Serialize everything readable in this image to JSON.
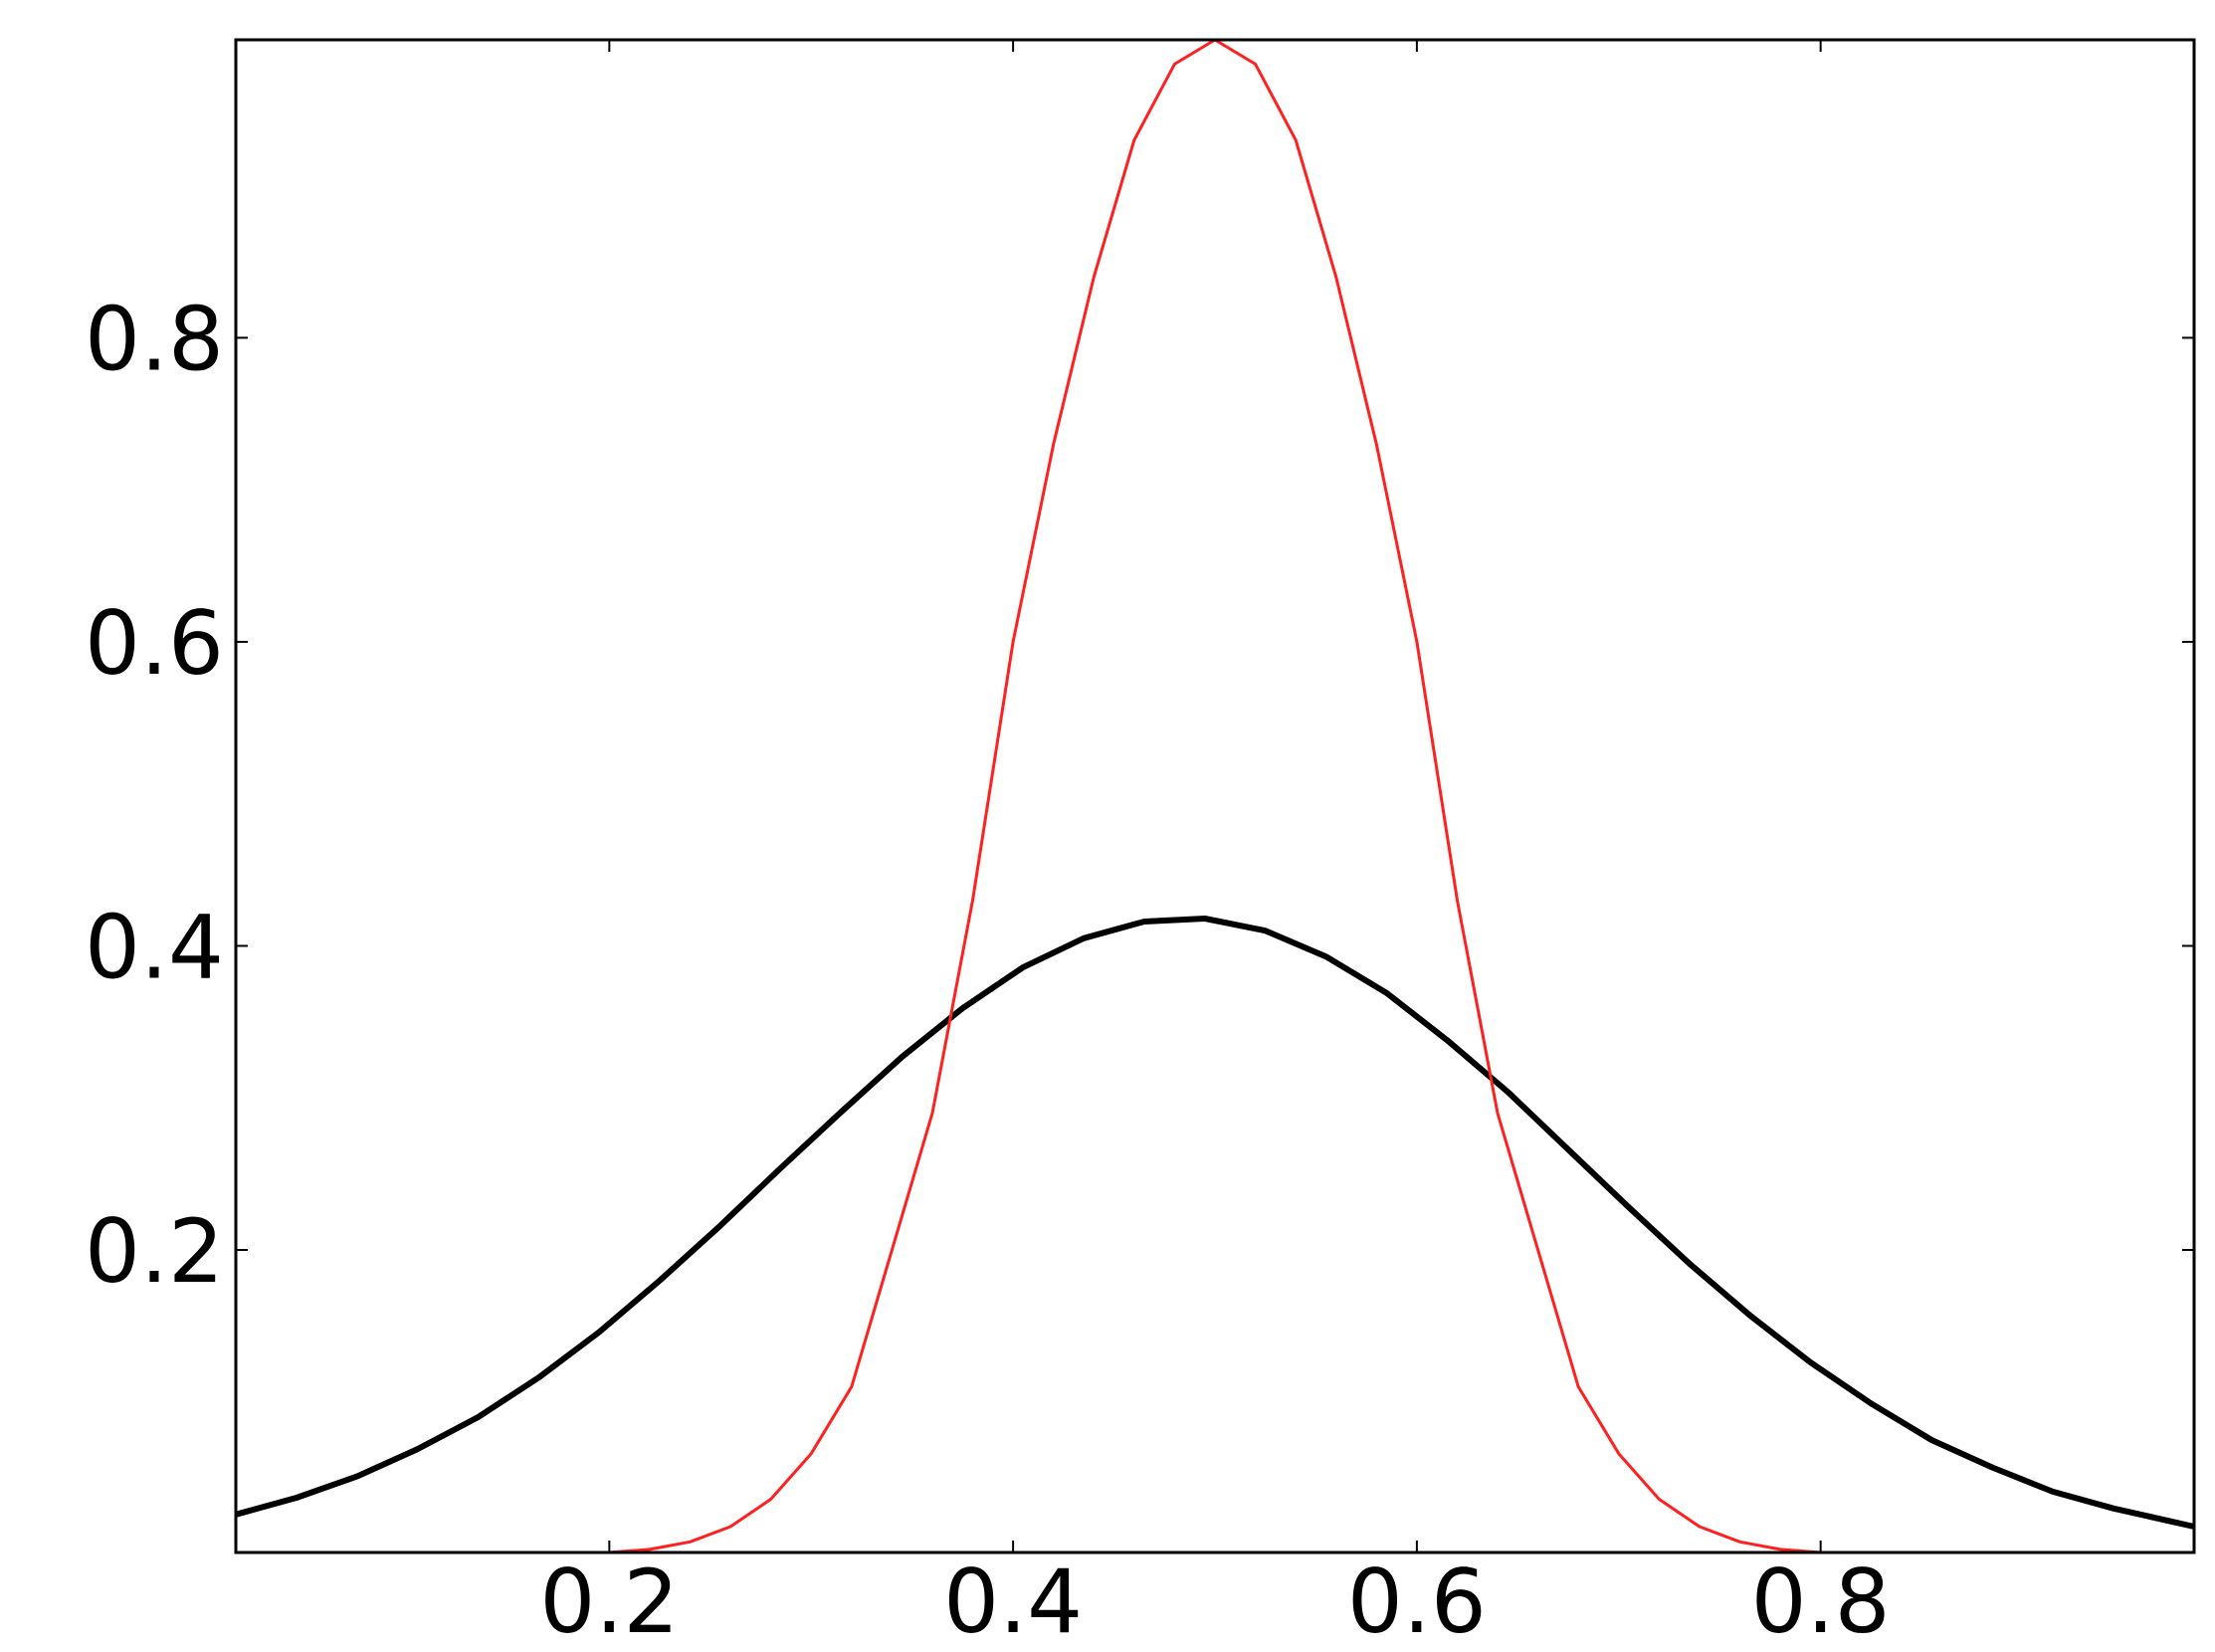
{
  "chart_data": {
    "type": "line",
    "xlim": [
      0.015,
      0.985
    ],
    "ylim": [
      0.001,
      0.996
    ],
    "xticks": [
      0.2,
      0.4,
      0.6,
      0.8
    ],
    "yticks": [
      0.2,
      0.4,
      0.6,
      0.8
    ],
    "series": [
      {
        "color": "#000000",
        "x": [
          0.015,
          0.045,
          0.075,
          0.105,
          0.135,
          0.165,
          0.195,
          0.225,
          0.255,
          0.285,
          0.315,
          0.345,
          0.375,
          0.405,
          0.435,
          0.465,
          0.495,
          0.525,
          0.555,
          0.585,
          0.615,
          0.645,
          0.675,
          0.705,
          0.735,
          0.765,
          0.795,
          0.825,
          0.855,
          0.885,
          0.915,
          0.945,
          0.975,
          0.985
        ],
        "values": [
          0.026,
          0.037,
          0.051,
          0.069,
          0.09,
          0.116,
          0.146,
          0.18,
          0.216,
          0.254,
          0.291,
          0.327,
          0.359,
          0.386,
          0.405,
          0.416,
          0.418,
          0.41,
          0.393,
          0.369,
          0.338,
          0.304,
          0.266,
          0.228,
          0.191,
          0.157,
          0.126,
          0.099,
          0.075,
          0.057,
          0.041,
          0.03,
          0.021,
          0.018
        ]
      },
      {
        "color": "#ff2020",
        "x": [
          0.2,
          0.22,
          0.24,
          0.26,
          0.28,
          0.3,
          0.32,
          0.34,
          0.36,
          0.38,
          0.4,
          0.42,
          0.44,
          0.46,
          0.48,
          0.5,
          0.52,
          0.54,
          0.56,
          0.58,
          0.6,
          0.62,
          0.64,
          0.66,
          0.68,
          0.7,
          0.72,
          0.74,
          0.76,
          0.78,
          0.8
        ],
        "values": [
          0.001,
          0.003,
          0.008,
          0.018,
          0.036,
          0.066,
          0.11,
          0.2,
          0.29,
          0.43,
          0.6,
          0.73,
          0.84,
          0.93,
          0.98,
          0.996,
          0.98,
          0.93,
          0.84,
          0.73,
          0.6,
          0.43,
          0.29,
          0.2,
          0.11,
          0.066,
          0.036,
          0.018,
          0.008,
          0.003,
          0.001
        ]
      }
    ]
  }
}
